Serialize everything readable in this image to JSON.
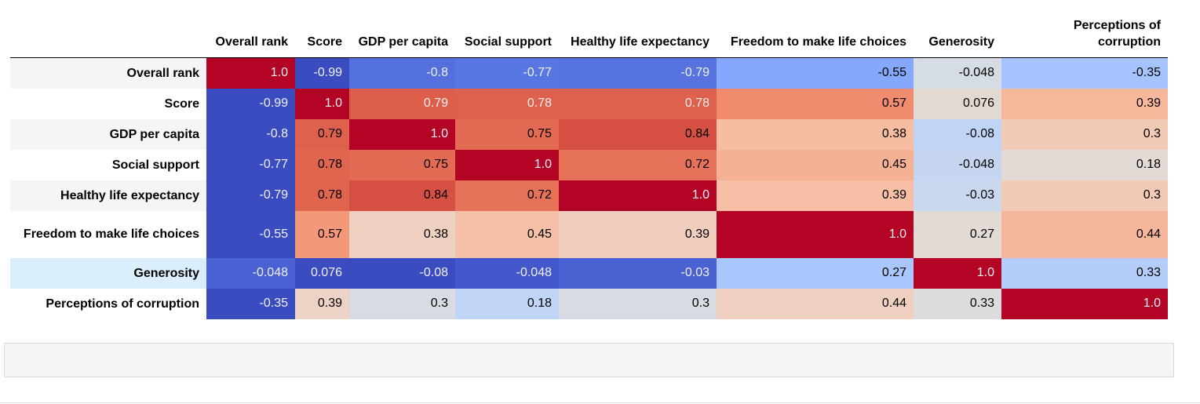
{
  "table": {
    "columns": [
      "Overall rank",
      "Score",
      "GDP per capita",
      "Social support",
      "Healthy life expectancy",
      "Freedom to make life choices",
      "Generosity",
      "Perceptions of corruption"
    ],
    "rows": [
      {
        "label": "Overall rank",
        "values": [
          "1.0",
          "-0.99",
          "-0.8",
          "-0.77",
          "-0.79",
          "-0.55",
          "-0.048",
          "-0.35"
        ],
        "bg": [
          "#b40426",
          "#3b4cc0",
          "#5470de",
          "#5977e3",
          "#5673e0",
          "#85a8fc",
          "#d6dce4",
          "#a5c3fe"
        ],
        "fg": [
          "#f1f1f1",
          "#f1f1f1",
          "#f1f1f1",
          "#f1f1f1",
          "#f1f1f1",
          "#000000",
          "#000000",
          "#000000"
        ]
      },
      {
        "label": "Score",
        "values": [
          "-0.99",
          "1.0",
          "0.79",
          "0.78",
          "0.78",
          "0.57",
          "0.076",
          "0.39"
        ],
        "bg": [
          "#3b4cc0",
          "#b40426",
          "#dd5f4b",
          "#de614d",
          "#de614d",
          "#f08b6e",
          "#e3d9d3",
          "#f7b79b"
        ],
        "fg": [
          "#f1f1f1",
          "#f1f1f1",
          "#f1f1f1",
          "#f1f1f1",
          "#f1f1f1",
          "#000000",
          "#000000",
          "#000000"
        ]
      },
      {
        "label": "GDP per capita",
        "values": [
          "-0.8",
          "0.79",
          "1.0",
          "0.75",
          "0.84",
          "0.38",
          "-0.08",
          "0.3"
        ],
        "bg": [
          "#3b4cc0",
          "#de614d",
          "#b40426",
          "#e36b54",
          "#d55042",
          "#f6bda2",
          "#c0d4f5",
          "#f2cab5"
        ],
        "fg": [
          "#f1f1f1",
          "#000000",
          "#f1f1f1",
          "#000000",
          "#000000",
          "#000000",
          "#000000",
          "#000000"
        ]
      },
      {
        "label": "Social support",
        "values": [
          "-0.77",
          "0.78",
          "0.75",
          "1.0",
          "0.72",
          "0.45",
          "-0.048",
          "0.18"
        ],
        "bg": [
          "#3b4cc0",
          "#e0654f",
          "#e36b54",
          "#b40426",
          "#e67259",
          "#f5b194",
          "#c6d6f1",
          "#e2dad5"
        ],
        "fg": [
          "#f1f1f1",
          "#000000",
          "#000000",
          "#f1f1f1",
          "#000000",
          "#000000",
          "#000000",
          "#000000"
        ]
      },
      {
        "label": "Healthy life expectancy",
        "values": [
          "-0.79",
          "0.78",
          "0.84",
          "0.72",
          "1.0",
          "0.39",
          "-0.03",
          "0.3"
        ],
        "bg": [
          "#3b4cc0",
          "#e0654f",
          "#d55042",
          "#e67259",
          "#b40426",
          "#f6bfa6",
          "#cad8ef",
          "#f2cab5"
        ],
        "fg": [
          "#f1f1f1",
          "#000000",
          "#000000",
          "#000000",
          "#f1f1f1",
          "#000000",
          "#000000",
          "#000000"
        ]
      },
      {
        "label": "Freedom to make life choices",
        "values": [
          "-0.55",
          "0.57",
          "0.38",
          "0.45",
          "0.39",
          "1.0",
          "0.27",
          "0.44"
        ],
        "bg": [
          "#3b4cc0",
          "#f4987a",
          "#efcfbf",
          "#f4c0a7",
          "#efcebd",
          "#b40426",
          "#e2dad5",
          "#f5b79b"
        ],
        "fg": [
          "#f1f1f1",
          "#000000",
          "#000000",
          "#000000",
          "#000000",
          "#f1f1f1",
          "#000000",
          "#000000"
        ]
      },
      {
        "label": "Generosity",
        "values": [
          "-0.048",
          "0.076",
          "-0.08",
          "-0.048",
          "-0.03",
          "0.27",
          "1.0",
          "0.33"
        ],
        "bg": [
          "#4961d2",
          "#3b4cc0",
          "#3b4cc0",
          "#4358cb",
          "#4a63d3",
          "#aac7fd",
          "#b40426",
          "#b5cdfa"
        ],
        "fg": [
          "#f1f1f1",
          "#f1f1f1",
          "#f1f1f1",
          "#f1f1f1",
          "#f1f1f1",
          "#000000",
          "#f1f1f1",
          "#000000"
        ]
      },
      {
        "label": "Perceptions of corruption",
        "values": [
          "-0.35",
          "0.39",
          "0.3",
          "0.18",
          "0.3",
          "0.44",
          "0.33",
          "1.0"
        ],
        "bg": [
          "#3b4cc0",
          "#ecd3c5",
          "#d8dce2",
          "#c0d4f5",
          "#d8dce2",
          "#efcfbf",
          "#dddcdc",
          "#b40426"
        ],
        "fg": [
          "#f1f1f1",
          "#000000",
          "#000000",
          "#000000",
          "#000000",
          "#000000",
          "#000000",
          "#f1f1f1"
        ]
      }
    ]
  }
}
